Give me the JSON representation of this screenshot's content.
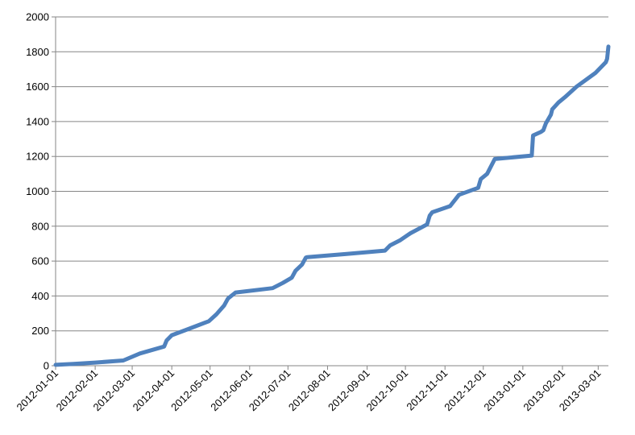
{
  "chart_data": {
    "type": "line",
    "xlabel": "",
    "ylabel": "",
    "x_axis": "date",
    "xlim": [
      "2012-01-01",
      "2013-03-09"
    ],
    "ylim": [
      0,
      2000
    ],
    "y_ticks": [
      "0",
      "200",
      "400",
      "600",
      "800",
      "1000",
      "1200",
      "1400",
      "1600",
      "1800",
      "2000"
    ],
    "x_ticks": [
      "2012-01-01",
      "2012-02-01",
      "2012-03-01",
      "2012-04-01",
      "2012-05-01",
      "2012-06-01",
      "2012-07-01",
      "2012-08-01",
      "2012-09-01",
      "2012-10-01",
      "2012-11-01",
      "2012-12-01",
      "2013-01-01",
      "2013-02-01",
      "2013-03-01"
    ],
    "grid": "horizontal",
    "legend": "none",
    "colors": {
      "series": "#4f81bd",
      "grid": "#868686",
      "axis": "#868686"
    },
    "series": [
      {
        "x": [
          "2012-01-01",
          "2012-01-15",
          "2012-02-01",
          "2012-02-23",
          "2012-03-07",
          "2012-03-26",
          "2012-03-28",
          "2012-04-01",
          "2012-04-12",
          "2012-04-30",
          "2012-05-06",
          "2012-05-12",
          "2012-05-15",
          "2012-05-21",
          "2012-06-19",
          "2012-06-27",
          "2012-07-04",
          "2012-07-07",
          "2012-07-12",
          "2012-07-15",
          "2012-07-16",
          "2012-08-15",
          "2012-09-15",
          "2012-09-19",
          "2012-09-27",
          "2012-10-05",
          "2012-10-18",
          "2012-10-20",
          "2012-10-22",
          "2012-11-05",
          "2012-11-12",
          "2012-11-27",
          "2012-11-29",
          "2012-12-04",
          "2012-12-10",
          "2013-01-08",
          "2013-01-09",
          "2013-01-15",
          "2013-01-17",
          "2013-01-19",
          "2013-01-23",
          "2013-01-24",
          "2013-01-29",
          "2013-02-03",
          "2013-02-12",
          "2013-02-27",
          "2013-03-07",
          "2013-03-08",
          "2013-03-09"
        ],
        "values": [
          5,
          10,
          18,
          30,
          70,
          110,
          145,
          175,
          205,
          255,
          295,
          345,
          385,
          420,
          445,
          475,
          505,
          545,
          580,
          620,
          622,
          640,
          660,
          690,
          720,
          760,
          810,
          860,
          880,
          915,
          980,
          1020,
          1070,
          1100,
          1185,
          1205,
          1320,
          1340,
          1350,
          1390,
          1440,
          1470,
          1510,
          1540,
          1600,
          1680,
          1740,
          1760,
          1830
        ]
      }
    ]
  }
}
